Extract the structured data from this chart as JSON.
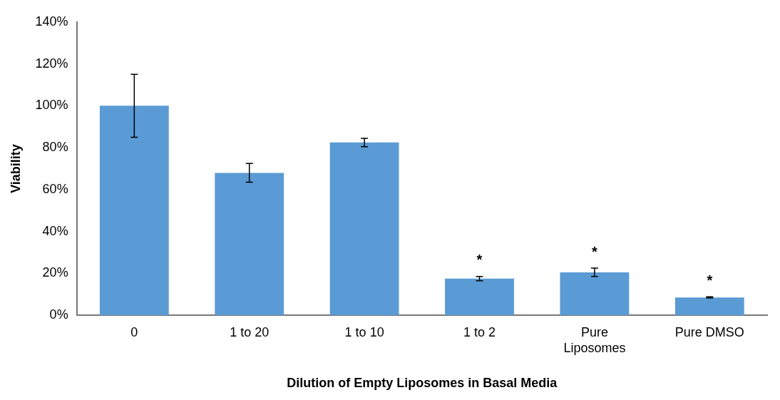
{
  "chart_data": {
    "type": "bar",
    "xlabel": "Dilution of Empty Liposomes in Basal Media",
    "ylabel": "Viability",
    "categories": [
      "0",
      "1 to 20",
      "1 to 10",
      "1 to 2",
      "Pure Liposomes",
      "Pure DMSO"
    ],
    "values": [
      100,
      68,
      82.5,
      17.5,
      20.5,
      8.5
    ],
    "errors": [
      15,
      4.5,
      2,
      1,
      2,
      0.3
    ],
    "color": "#5b9bd5",
    "ylim": [
      0,
      140
    ],
    "yticks": [
      {
        "value": 0,
        "label": "0%"
      },
      {
        "value": 20,
        "label": "20%"
      },
      {
        "value": 40,
        "label": "40%"
      },
      {
        "value": 60,
        "label": "60%"
      },
      {
        "value": 80,
        "label": "80%"
      },
      {
        "value": 100,
        "label": "100%"
      },
      {
        "value": 120,
        "label": "120%"
      },
      {
        "value": 140,
        "label": "140%"
      }
    ],
    "value_labels": [
      null,
      null,
      null,
      "*",
      "*",
      "*"
    ],
    "grid": false,
    "legend": false
  }
}
